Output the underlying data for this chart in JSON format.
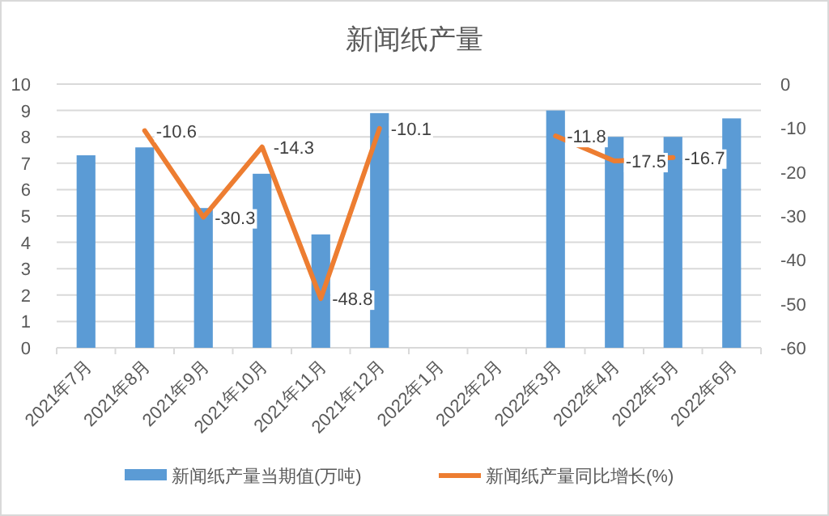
{
  "chart_data": {
    "type": "bar",
    "title": "新闻纸产量",
    "categories": [
      "2021年7月",
      "2021年8月",
      "2021年9月",
      "2021年10月",
      "2021年11月",
      "2021年12月",
      "2022年1月",
      "2022年2月",
      "2022年3月",
      "2022年4月",
      "2022年5月",
      "2022年6月"
    ],
    "series": [
      {
        "name": "新闻纸产量当期值(万吨)",
        "color": "#5b9bd5",
        "values": [
          7.3,
          7.6,
          5.3,
          6.6,
          4.3,
          8.9,
          null,
          null,
          9.0,
          8.0,
          8.0,
          8.7
        ]
      },
      {
        "name": "新闻纸产量同比增长(%)",
        "type": "line",
        "axis": "y2",
        "color": "#ed7d31",
        "values": [
          null,
          -10.6,
          -30.3,
          -14.3,
          -48.8,
          -10.1,
          null,
          null,
          -11.8,
          -17.5,
          -16.7,
          null
        ],
        "value_labels": [
          null,
          "-10.6",
          "-30.3",
          "-14.3",
          "-48.8",
          "-10.1",
          null,
          null,
          "-11.8",
          "-17.5",
          "-16.7",
          null
        ]
      }
    ],
    "ylim": [
      0,
      10
    ],
    "yticks": [
      0,
      1,
      2,
      3,
      4,
      5,
      6,
      7,
      8,
      9,
      10
    ],
    "y2lim": [
      -60,
      0
    ],
    "y2ticks": [
      -60,
      -50,
      -40,
      -30,
      -20,
      -10,
      0
    ],
    "grid": "y",
    "legend": "bottom"
  }
}
